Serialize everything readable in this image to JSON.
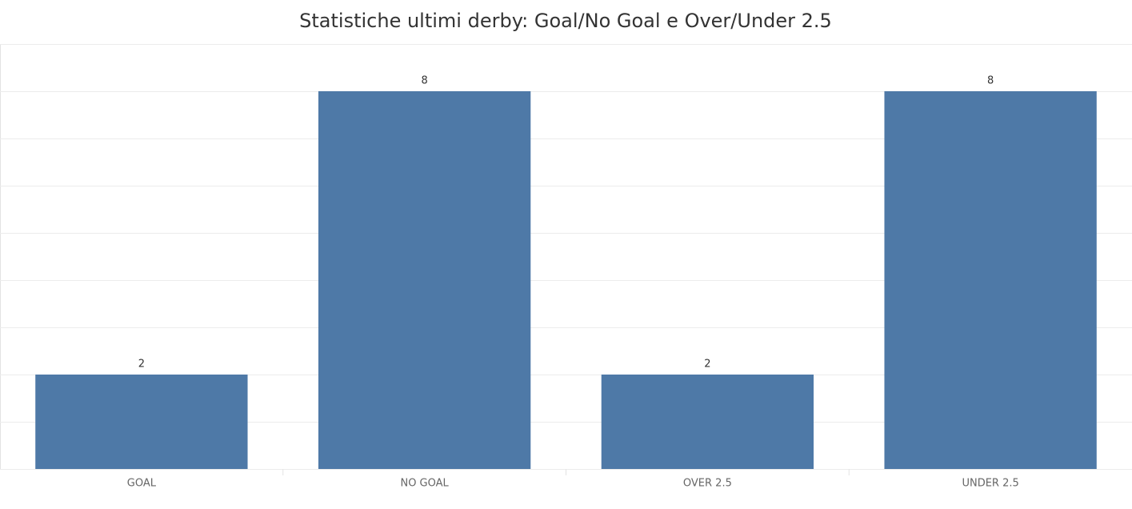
{
  "chart_data": {
    "type": "bar",
    "title": "Statistiche ultimi derby: Goal/No Goal e Over/Under 2.5",
    "categories": [
      "GOAL",
      "NO GOAL",
      "OVER 2.5",
      "UNDER 2.5"
    ],
    "values": [
      2,
      8,
      2,
      8
    ],
    "color": "#4e79a7",
    "ylim": [
      0,
      9
    ],
    "yticks": [
      0,
      1,
      2,
      3,
      4,
      5,
      6,
      7,
      8,
      9
    ],
    "grid": true
  }
}
